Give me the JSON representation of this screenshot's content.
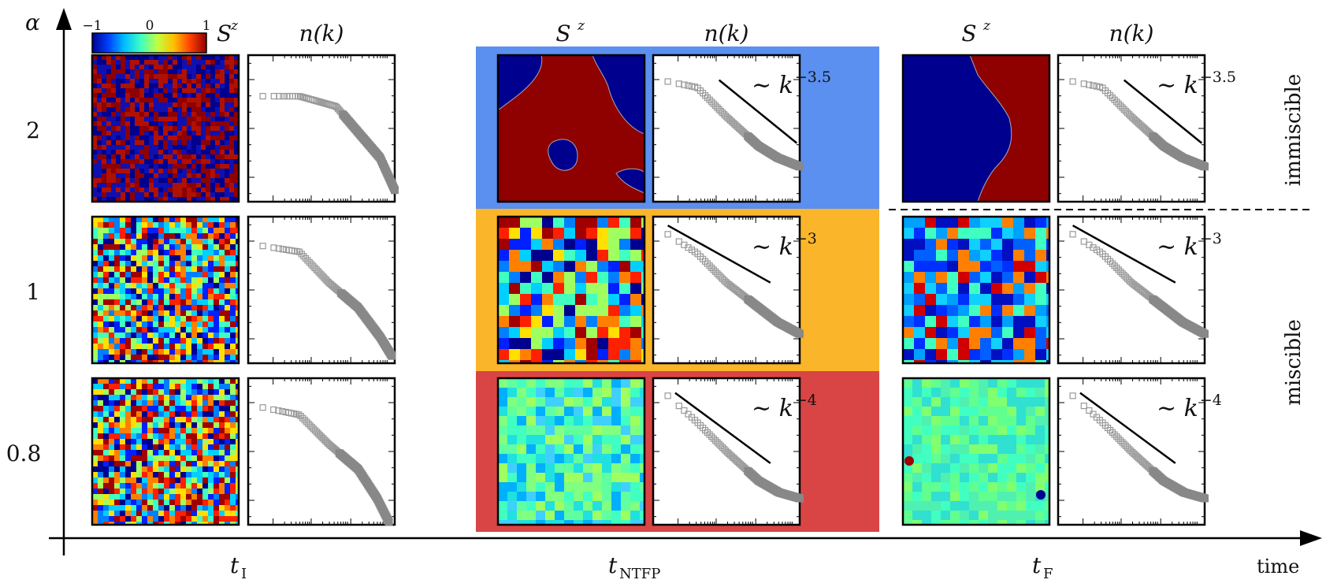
{
  "colorbar": {
    "label": "S",
    "label_sup": "z",
    "min_label": "−1",
    "mid_label": "0",
    "max_label": "1",
    "colors": [
      "#00008f",
      "#0040ff",
      "#00c0ff",
      "#40ffc0",
      "#c0ff40",
      "#ffc000",
      "#ff4000",
      "#8f0000"
    ]
  },
  "axes": {
    "y_label": "α",
    "x_label": "time",
    "time_labels": [
      {
        "base": "t",
        "sub": "I"
      },
      {
        "base": "t",
        "sub": "NTFP"
      },
      {
        "base": "t",
        "sub": "F"
      }
    ],
    "alpha_values": [
      "2",
      "1",
      "0.8"
    ]
  },
  "column_headers": {
    "spin": {
      "base": "S",
      "sup": "z"
    },
    "nk": "n(k)"
  },
  "regions": {
    "immiscible": "immiscible",
    "miscible": "miscible"
  },
  "highlight_colors": [
    "#5b8ff0",
    "#fbb52a",
    "#d94545"
  ],
  "rows": [
    {
      "alpha": "2",
      "slope_label": {
        "base": "∼ k",
        "sup": "−3.5"
      },
      "exponent": -3.5,
      "spin_maps": [
        {
          "time": "t_I",
          "pattern": "fine-domains",
          "dominant": "red/blue"
        },
        {
          "time": "t_NTFP",
          "pattern": "coarse-domains",
          "dominant": "red/blue"
        },
        {
          "time": "t_F",
          "pattern": "two-domains",
          "dominant": "red/blue"
        }
      ]
    },
    {
      "alpha": "1",
      "slope_label": {
        "base": "∼ k",
        "sup": "−3"
      },
      "exponent": -3,
      "spin_maps": [
        {
          "time": "t_I",
          "pattern": "mixed-fine",
          "dominant": "rainbow"
        },
        {
          "time": "t_NTFP",
          "pattern": "mixed-coarse",
          "dominant": "rainbow"
        },
        {
          "time": "t_F",
          "pattern": "mixed-blue",
          "dominant": "blue"
        }
      ]
    },
    {
      "alpha": "0.8",
      "slope_label": {
        "base": "∼ k",
        "sup": "−4"
      },
      "exponent": -4,
      "spin_maps": [
        {
          "time": "t_I",
          "pattern": "mixed-fine",
          "dominant": "rainbow"
        },
        {
          "time": "t_NTFP",
          "pattern": "mostly-mixed",
          "dominant": "green"
        },
        {
          "time": "t_F",
          "pattern": "uniform",
          "dominant": "green"
        }
      ]
    }
  ]
}
